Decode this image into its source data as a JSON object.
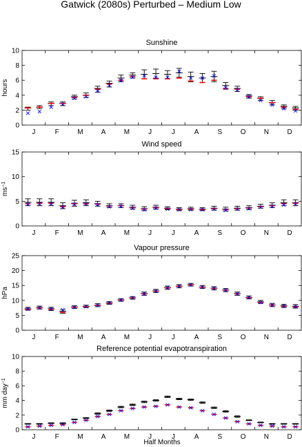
{
  "figure": {
    "title": "Gatwick (2080s) Perturbed – Medium Low",
    "xlabel": "Half Months",
    "month_labels": [
      "J",
      "F",
      "M",
      "A",
      "M",
      "J",
      "J",
      "A",
      "S",
      "O",
      "N",
      "D"
    ],
    "colors": {
      "baseline": "#000000",
      "mean": "#ff0000",
      "perturbed": "#0000ff",
      "median": "#cc00cc"
    }
  },
  "chart_data": [
    {
      "type": "scatter",
      "title": "Sunshine",
      "ylabel": "hours",
      "ylim": [
        0,
        10
      ],
      "yticks": [
        0,
        2,
        4,
        6,
        8,
        10
      ],
      "x": [
        1,
        2,
        3,
        4,
        5,
        6,
        7,
        8,
        9,
        10,
        11,
        12,
        13,
        14,
        15,
        16,
        17,
        18,
        19,
        20,
        21,
        22,
        23,
        24
      ],
      "series": [
        {
          "marker": "errorbar",
          "color": "#000000",
          "values": [
            2.3,
            2.4,
            2.9,
            2.9,
            3.8,
            4.0,
            4.9,
            5.6,
            6.3,
            6.7,
            6.8,
            6.9,
            6.8,
            7.0,
            6.5,
            6.3,
            6.5,
            5.3,
            4.9,
            3.9,
            3.6,
            3.0,
            2.5,
            2.3
          ],
          "low": [
            2.0,
            2.2,
            2.6,
            2.6,
            3.5,
            3.7,
            4.4,
            5.1,
            5.8,
            6.3,
            6.2,
            6.3,
            6.2,
            6.4,
            5.8,
            5.7,
            5.8,
            4.8,
            4.5,
            3.6,
            3.3,
            2.7,
            2.2,
            2.0
          ],
          "high": [
            2.4,
            2.6,
            3.1,
            3.1,
            4.0,
            4.3,
            5.2,
            5.9,
            6.7,
            7.0,
            7.4,
            7.5,
            7.3,
            7.6,
            7.1,
            6.9,
            7.2,
            5.7,
            5.2,
            4.1,
            3.8,
            3.3,
            2.7,
            2.5
          ]
        },
        {
          "marker": "dash",
          "color": "#ff0000",
          "values": [
            2.3,
            2.4,
            2.9,
            2.9,
            3.7,
            4.0,
            4.8,
            5.5,
            6.0,
            6.5,
            6.2,
            6.2,
            6.2,
            6.3,
            5.9,
            5.7,
            6.0,
            4.9,
            4.8,
            3.8,
            3.6,
            3.0,
            2.4,
            2.1
          ]
        },
        {
          "marker": "cross",
          "color": "#0000ff",
          "values": [
            1.6,
            1.8,
            2.4,
            2.8,
            3.6,
            3.8,
            4.6,
            5.3,
            6.0,
            6.4,
            6.6,
            6.4,
            6.4,
            7.2,
            6.3,
            6.3,
            6.6,
            5.0,
            4.7,
            3.8,
            3.3,
            2.7,
            2.2,
            1.9
          ]
        }
      ]
    },
    {
      "type": "scatter",
      "title": "Wind speed",
      "ylabel": "ms",
      "ylabel_sup": "−1",
      "ylim": [
        0,
        15
      ],
      "yticks": [
        0,
        5,
        10,
        15
      ],
      "x": [
        1,
        2,
        3,
        4,
        5,
        6,
        7,
        8,
        9,
        10,
        11,
        12,
        13,
        14,
        15,
        16,
        17,
        18,
        19,
        20,
        21,
        22,
        23,
        24
      ],
      "series": [
        {
          "marker": "errorbar",
          "color": "#000000",
          "values": [
            4.8,
            4.8,
            4.8,
            4.1,
            4.6,
            4.7,
            4.5,
            4.1,
            4.1,
            3.8,
            3.5,
            3.8,
            3.6,
            3.4,
            3.5,
            3.4,
            3.6,
            3.4,
            3.6,
            3.7,
            4.0,
            4.2,
            4.7,
            4.7
          ],
          "low": [
            4.1,
            4.1,
            4.1,
            3.5,
            4.0,
            4.1,
            4.0,
            3.7,
            3.7,
            3.4,
            3.1,
            3.4,
            3.3,
            3.1,
            3.2,
            3.1,
            3.2,
            3.0,
            3.2,
            3.3,
            3.6,
            3.7,
            4.1,
            4.1
          ],
          "high": [
            5.5,
            5.5,
            5.5,
            4.7,
            5.2,
            5.3,
            5.0,
            4.5,
            4.5,
            4.2,
            3.9,
            4.2,
            3.9,
            3.7,
            3.8,
            3.7,
            4.0,
            3.8,
            4.0,
            4.1,
            4.4,
            4.7,
            5.3,
            5.3
          ]
        },
        {
          "marker": "dash",
          "color": "#ff0000",
          "values": [
            4.5,
            4.6,
            4.6,
            3.9,
            4.5,
            4.5,
            4.4,
            4.0,
            4.1,
            3.7,
            3.4,
            3.7,
            3.5,
            3.3,
            3.4,
            3.3,
            3.5,
            3.3,
            3.5,
            3.6,
            3.9,
            4.1,
            4.5,
            4.6
          ]
        },
        {
          "marker": "cross",
          "color": "#0000ff",
          "values": [
            4.4,
            4.5,
            4.5,
            3.8,
            4.4,
            4.5,
            4.3,
            3.9,
            4.0,
            3.6,
            3.3,
            3.6,
            3.4,
            3.3,
            3.3,
            3.3,
            3.4,
            3.2,
            3.4,
            3.5,
            3.8,
            4.0,
            4.3,
            4.5
          ]
        }
      ]
    },
    {
      "type": "scatter",
      "title": "Vapour pressure",
      "ylabel": "hPa",
      "ylim": [
        0,
        25
      ],
      "yticks": [
        0,
        5,
        10,
        15,
        20,
        25
      ],
      "x": [
        1,
        2,
        3,
        4,
        5,
        6,
        7,
        8,
        9,
        10,
        11,
        12,
        13,
        14,
        15,
        16,
        17,
        18,
        19,
        20,
        21,
        22,
        23,
        24
      ],
      "series": [
        {
          "marker": "errorbar",
          "color": "#000000",
          "values": [
            7.2,
            7.6,
            7.2,
            6.4,
            7.8,
            8.0,
            8.4,
            9.2,
            10.2,
            10.9,
            12.3,
            13.2,
            14.3,
            14.8,
            15.3,
            14.5,
            14.1,
            13.5,
            12.3,
            11.0,
            9.5,
            8.5,
            8.2,
            8.0
          ],
          "low": [
            6.7,
            7.1,
            6.6,
            5.7,
            7.3,
            7.6,
            7.9,
            8.7,
            9.7,
            10.4,
            11.7,
            12.6,
            13.7,
            14.2,
            14.8,
            14.0,
            13.5,
            12.9,
            11.7,
            10.5,
            9.0,
            7.9,
            7.6,
            7.4
          ],
          "high": [
            7.7,
            8.1,
            7.7,
            7.0,
            8.2,
            8.4,
            8.9,
            9.6,
            10.6,
            11.3,
            12.8,
            13.7,
            14.8,
            15.3,
            15.7,
            15.0,
            14.6,
            14.0,
            12.8,
            11.5,
            10.0,
            9.0,
            8.7,
            8.6
          ]
        },
        {
          "marker": "dash",
          "color": "#ff0000",
          "values": [
            7.0,
            7.5,
            7.0,
            6.0,
            7.7,
            7.9,
            8.3,
            9.0,
            10.1,
            10.8,
            12.2,
            13.1,
            14.2,
            14.7,
            15.2,
            14.4,
            14.0,
            13.4,
            12.2,
            10.9,
            9.3,
            8.4,
            8.0,
            7.8
          ]
        },
        {
          "marker": "cross",
          "color": "#0000ff",
          "values": [
            7.1,
            7.5,
            7.1,
            6.8,
            7.7,
            7.9,
            8.3,
            9.1,
            10.1,
            10.8,
            12.2,
            13.1,
            14.2,
            14.7,
            15.2,
            14.4,
            14.0,
            13.4,
            12.2,
            10.9,
            9.3,
            8.4,
            8.1,
            7.9
          ]
        }
      ]
    },
    {
      "type": "scatter",
      "title": "Reference potential evapotranspiration",
      "ylabel": "mm day",
      "ylabel_sup": "−1",
      "ylim": [
        0,
        10
      ],
      "yticks": [
        0,
        2,
        4,
        6,
        8,
        10
      ],
      "x": [
        1,
        2,
        3,
        4,
        5,
        6,
        7,
        8,
        9,
        10,
        11,
        12,
        13,
        14,
        15,
        16,
        17,
        18,
        19,
        20,
        21,
        22,
        23,
        24
      ],
      "series": [
        {
          "marker": "errorbar",
          "color": "#000000",
          "values": [
            0.8,
            0.8,
            0.9,
            0.9,
            1.4,
            1.6,
            2.2,
            2.6,
            3.1,
            3.4,
            3.8,
            4.0,
            4.5,
            4.2,
            4.1,
            3.7,
            3.0,
            2.5,
            1.8,
            1.3,
            1.0,
            0.8,
            0.8,
            0.8
          ],
          "low": [
            0.75,
            0.75,
            0.85,
            0.85,
            1.35,
            1.55,
            2.1,
            2.5,
            3.0,
            3.3,
            3.7,
            3.9,
            4.4,
            4.1,
            4.0,
            3.6,
            2.9,
            2.4,
            1.7,
            1.25,
            0.95,
            0.75,
            0.75,
            0.75
          ],
          "high": [
            0.85,
            0.85,
            0.95,
            0.95,
            1.45,
            1.65,
            2.3,
            2.7,
            3.2,
            3.5,
            3.9,
            4.1,
            4.6,
            4.3,
            4.2,
            3.8,
            3.1,
            2.6,
            1.9,
            1.35,
            1.05,
            0.85,
            0.85,
            0.85
          ]
        },
        {
          "marker": "dash",
          "color": "#ff0000",
          "values": [
            0.4,
            0.5,
            0.6,
            0.7,
            1.0,
            1.3,
            1.8,
            2.1,
            2.6,
            2.9,
            3.1,
            3.2,
            3.4,
            3.1,
            3.0,
            2.6,
            2.1,
            1.6,
            1.1,
            0.8,
            0.6,
            0.5,
            0.4,
            0.4
          ]
        },
        {
          "marker": "cross",
          "color": "#0000ff",
          "values": [
            0.4,
            0.5,
            0.6,
            0.7,
            1.0,
            1.3,
            1.8,
            2.1,
            2.6,
            2.9,
            3.1,
            3.2,
            3.4,
            3.1,
            3.0,
            2.6,
            2.1,
            1.6,
            1.1,
            0.8,
            0.6,
            0.5,
            0.4,
            0.4
          ]
        }
      ]
    }
  ]
}
